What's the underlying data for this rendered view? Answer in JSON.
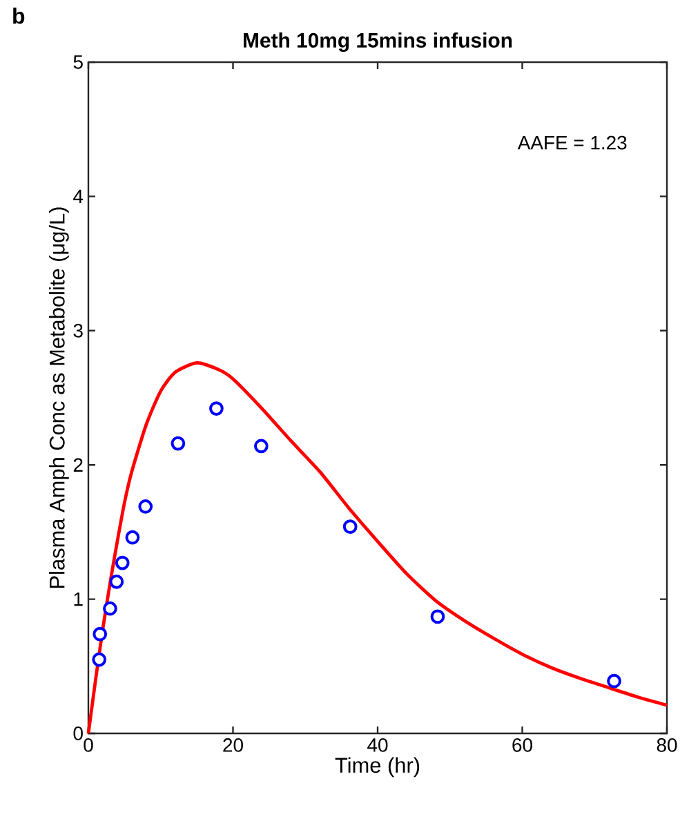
{
  "chart_data": {
    "type": "scatter",
    "title": "Meth 10mg 15mins infusion",
    "xlabel": "Time (hr)",
    "ylabel": "Plasma Amph Conc as Metabolite (μg/L)",
    "annotations": [
      "b",
      "AAFE = 1.23"
    ],
    "xlim": [
      0,
      80
    ],
    "ylim": [
      0,
      5
    ],
    "xticks": [
      0,
      20,
      40,
      60,
      80
    ],
    "yticks": [
      0,
      1,
      2,
      3,
      4,
      5
    ],
    "grid": false,
    "series": [
      {
        "marker": "circle",
        "color": "#0000ff",
        "x": [
          1.5,
          1.6,
          3.0,
          3.9,
          4.7,
          6.1,
          7.9,
          12.4,
          17.7,
          23.9,
          36.2,
          48.3,
          72.7
        ],
        "values": [
          0.55,
          0.74,
          0.93,
          1.13,
          1.27,
          1.46,
          1.69,
          2.16,
          2.42,
          2.14,
          1.54,
          0.87,
          0.39
        ]
      },
      {
        "type": "line",
        "line_style": "solid",
        "color": "#ff0000",
        "x": [
          0,
          1,
          2,
          3,
          4,
          5,
          6,
          8,
          10,
          12,
          15,
          18,
          20,
          24,
          28,
          32,
          36,
          40,
          44,
          48,
          52,
          56,
          60,
          64,
          68,
          72,
          76,
          80
        ],
        "values": [
          0,
          0.4,
          0.78,
          1.12,
          1.43,
          1.72,
          1.95,
          2.3,
          2.55,
          2.69,
          2.76,
          2.71,
          2.64,
          2.42,
          2.18,
          1.95,
          1.68,
          1.43,
          1.19,
          0.99,
          0.84,
          0.71,
          0.59,
          0.49,
          0.41,
          0.34,
          0.27,
          0.21
        ]
      }
    ]
  }
}
